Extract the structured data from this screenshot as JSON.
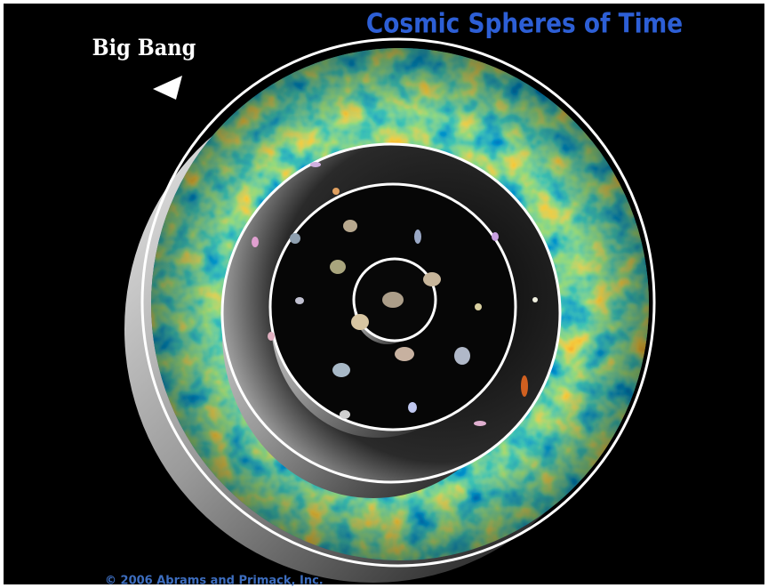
{
  "title": "Cosmic Spheres of Time",
  "label": "Big Bang",
  "copyright": "© 2006 Abrams and Primack, Inc."
}
